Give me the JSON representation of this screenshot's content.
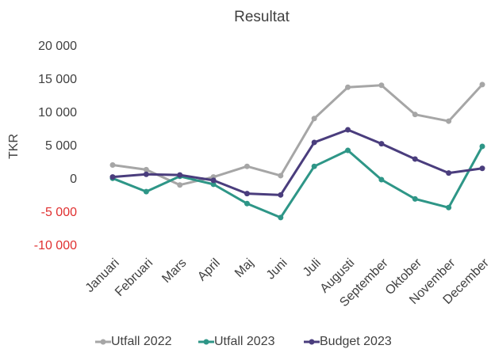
{
  "chart_data": {
    "type": "line",
    "title": "Resultat",
    "y_label": "TKR",
    "categories": [
      "Januari",
      "Februari",
      "Mars",
      "April",
      "Maj",
      "Juni",
      "Juli",
      "Augusti",
      "September",
      "Oktober",
      "November",
      "December"
    ],
    "series": [
      {
        "name": "Utfall 2022",
        "color": "#a6a6a6",
        "values": [
          2200,
          1500,
          -800,
          400,
          2000,
          600,
          9200,
          13900,
          14200,
          9800,
          8800,
          14300
        ]
      },
      {
        "name": "Utfall 2023",
        "color": "#2e9687",
        "values": [
          200,
          -1800,
          500,
          -700,
          -3600,
          -5700,
          2000,
          4400,
          0,
          -2900,
          -4200,
          5000
        ]
      },
      {
        "name": "Budget 2023",
        "color": "#4a3d7d",
        "values": [
          400,
          800,
          700,
          -100,
          -2100,
          -2300,
          5600,
          7500,
          5400,
          3100,
          1000,
          1700
        ]
      }
    ],
    "ylim": [
      -10000,
      20000
    ],
    "yticks": [
      {
        "value": -10000,
        "label": "-10 000"
      },
      {
        "value": -5000,
        "label": "-5 000"
      },
      0,
      {
        "value": 5000,
        "label": "5 000"
      },
      {
        "value": 10000,
        "label": "10 000"
      },
      {
        "value": 15000,
        "label": "15 000"
      },
      {
        "value": 20000,
        "label": "20 000"
      }
    ],
    "negative_tick_color": "#e03030",
    "grid": false,
    "legend": "bottom"
  }
}
